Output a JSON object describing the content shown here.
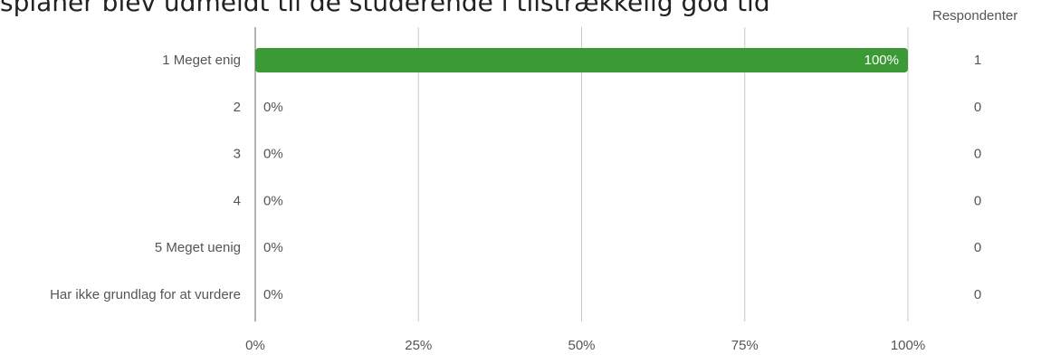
{
  "chart_data": {
    "type": "bar",
    "orientation": "horizontal",
    "title": "splaner blev udmeldt til de studerende i tilstrækkelig god tid",
    "categories": [
      "1 Meget enig",
      "2",
      "3",
      "4",
      "5 Meget uenig",
      "Har ikke grundlag for at vurdere"
    ],
    "values": [
      100,
      0,
      0,
      0,
      0,
      0
    ],
    "value_labels": [
      "100%",
      "0%",
      "0%",
      "0%",
      "0%",
      "0%"
    ],
    "respondents_header": "Respondenter",
    "respondents": [
      1,
      0,
      0,
      0,
      0,
      0
    ],
    "xlim": [
      0,
      100
    ],
    "x_ticks": [
      0,
      25,
      50,
      75,
      100
    ],
    "x_tick_labels": [
      "0%",
      "25%",
      "50%",
      "75%",
      "100%"
    ],
    "grid": true,
    "bar_color": "#3c9a36"
  }
}
